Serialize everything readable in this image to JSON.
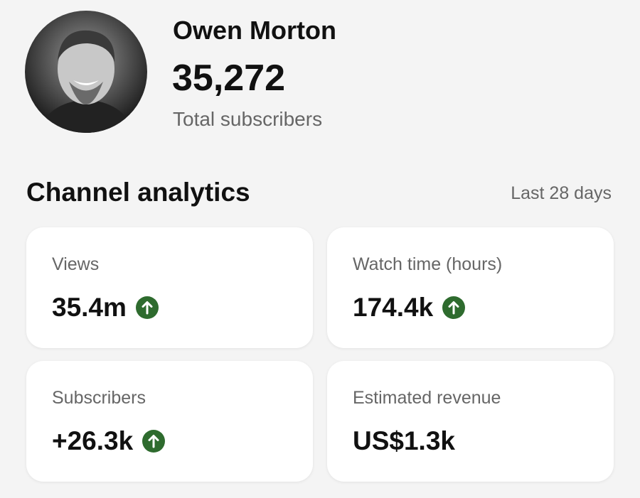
{
  "profile": {
    "name": "Owen Morton",
    "subscribers": "35,272",
    "subscribers_label": "Total subscribers"
  },
  "section": {
    "title": "Channel analytics",
    "period": "Last 28 days"
  },
  "cards": [
    {
      "label": "Views",
      "value": "35.4m",
      "trend": "up"
    },
    {
      "label": "Watch time (hours)",
      "value": "174.4k",
      "trend": "up"
    },
    {
      "label": "Subscribers",
      "value": "+26.3k",
      "trend": "up"
    },
    {
      "label": "Estimated revenue",
      "value": "US$1.3k"
    }
  ]
}
